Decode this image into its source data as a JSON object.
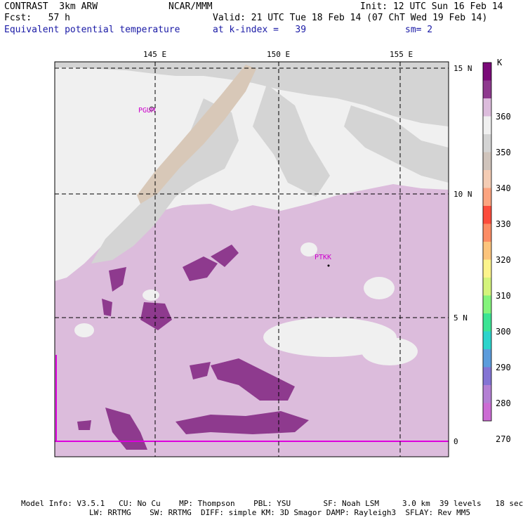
{
  "header": {
    "line1_left": "CONTRAST  3km ARW",
    "line1_center": "NCAR/MMM",
    "line1_right": "Init: 12 UTC Sun 16 Feb 14",
    "line2_left": "Fcst:   57 h",
    "line2_right": "Valid: 21 UTC Tue 18 Feb 14 (07 ChT Wed 19 Feb 14)",
    "line3_left": "Equivalent potential temperature",
    "line3_center": "at k-index =   39",
    "line3_right": "sm= 2"
  },
  "map": {
    "lon_labels": [
      "145 E",
      "150 E",
      "155 E"
    ],
    "lat_labels": [
      "15 N",
      "10 N",
      "5 N",
      "0"
    ],
    "stations": [
      "PGUM",
      "PTKK"
    ]
  },
  "legend": {
    "unit": "K",
    "labels": [
      "360",
      "350",
      "340",
      "330",
      "320",
      "310",
      "300",
      "290",
      "280",
      "270"
    ],
    "colors": [
      "#7a0a78",
      "#8e3a8e",
      "#dcbcdc",
      "#f0f0f0",
      "#d4d4d4",
      "#d0c4bc",
      "#f4ccb4",
      "#fca480",
      "#fc4c3c",
      "#fc8c64",
      "#fcc47c",
      "#fcf48c",
      "#d4f47c",
      "#84f47c",
      "#3ce494",
      "#2cd4cc",
      "#5c9cdc",
      "#8474d4",
      "#b480d4",
      "#cc6cd4"
    ]
  },
  "footer": {
    "line1": "Model Info: V3.5.1   CU: No Cu    MP: Thompson    PBL: YSU       SF: Noah LSM     3.0 km  39 levels   18 sec",
    "line2": "LW: RRTMG    SW: RRTMG  DIFF: simple KM: 3D Smagor DAMP: Rayleigh3  SFLAY: Rev MM5"
  }
}
